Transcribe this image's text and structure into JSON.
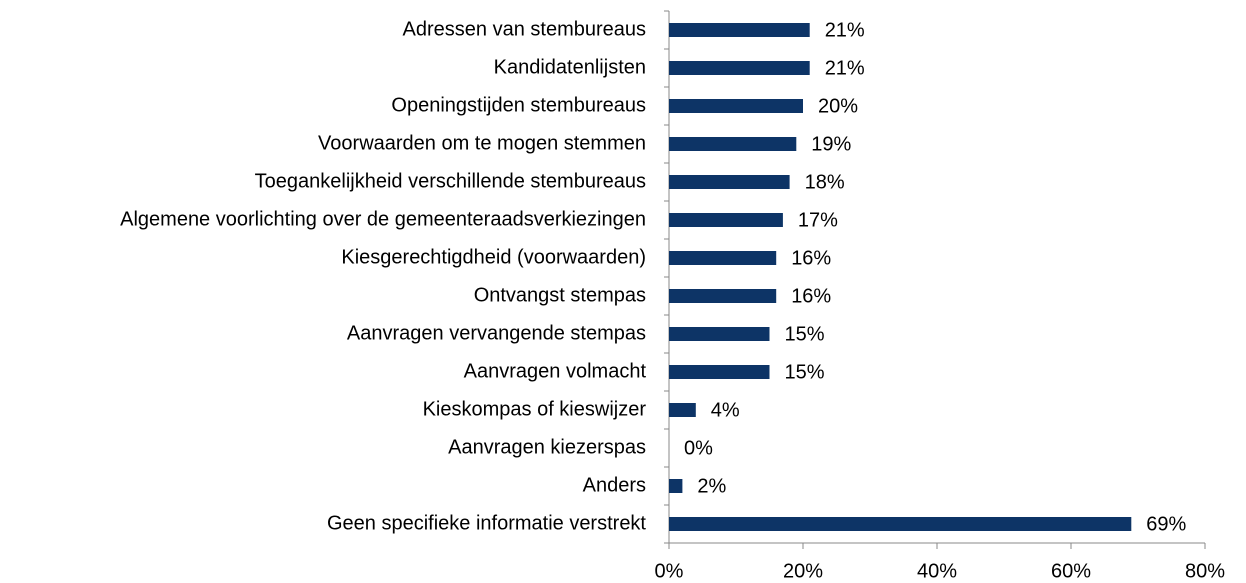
{
  "chart_data": {
    "type": "hbar",
    "categories": [
      "Adressen van stembureaus",
      "Kandidatenlijsten",
      "Openingstijden stembureaus",
      "Voorwaarden om te mogen stemmen",
      "Toegankelijkheid verschillende stembureaus",
      "Algemene voorlichting over de gemeenteraadsverkiezingen",
      "Kiesgerechtigdheid (voorwaarden)",
      "Ontvangst stempas",
      "Aanvragen vervangende stempas",
      "Aanvragen volmacht",
      "Kieskompas of kieswijzer",
      "Aanvragen kiezerspas",
      "Anders",
      "Geen specifieke informatie verstrekt"
    ],
    "values": [
      21,
      21,
      20,
      19,
      18,
      17,
      16,
      16,
      15,
      15,
      4,
      0,
      2,
      69
    ],
    "value_labels": [
      "21%",
      "21%",
      "20%",
      "19%",
      "18%",
      "17%",
      "16%",
      "16%",
      "15%",
      "15%",
      "4%",
      "0%",
      "2%",
      "69%"
    ],
    "color": "#0d3466",
    "xlim": [
      0,
      80
    ],
    "xticks": [
      {
        "value": 0,
        "label": "0%"
      },
      {
        "value": 20,
        "label": "20%"
      },
      {
        "value": 40,
        "label": "40%"
      },
      {
        "value": 60,
        "label": "60%"
      },
      {
        "value": 80,
        "label": "80%"
      }
    ],
    "grid": false
  }
}
